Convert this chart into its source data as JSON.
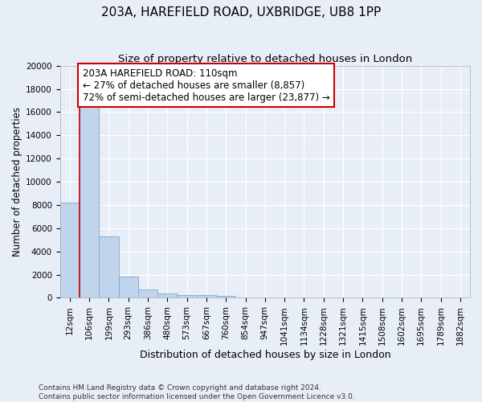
{
  "title": "203A, HAREFIELD ROAD, UXBRIDGE, UB8 1PP",
  "subtitle": "Size of property relative to detached houses in London",
  "xlabel": "Distribution of detached houses by size in London",
  "ylabel": "Number of detached properties",
  "categories": [
    "12sqm",
    "106sqm",
    "199sqm",
    "293sqm",
    "386sqm",
    "480sqm",
    "573sqm",
    "667sqm",
    "760sqm",
    "854sqm",
    "947sqm",
    "1041sqm",
    "1134sqm",
    "1228sqm",
    "1321sqm",
    "1415sqm",
    "1508sqm",
    "1602sqm",
    "1695sqm",
    "1789sqm",
    "1882sqm"
  ],
  "values": [
    8200,
    16600,
    5300,
    1850,
    720,
    370,
    270,
    220,
    195,
    0,
    0,
    0,
    0,
    0,
    0,
    0,
    0,
    0,
    0,
    0,
    0
  ],
  "bar_color": "#c0d4ec",
  "bar_edge_color": "#7aaad0",
  "vline_x": 0.5,
  "vline_color": "#cc0000",
  "annotation_text": "203A HAREFIELD ROAD: 110sqm\n← 27% of detached houses are smaller (8,857)\n72% of semi-detached houses are larger (23,877) →",
  "annotation_box_facecolor": "#ffffff",
  "annotation_box_edgecolor": "#cc0000",
  "ylim": [
    0,
    20000
  ],
  "yticks": [
    0,
    2000,
    4000,
    6000,
    8000,
    10000,
    12000,
    14000,
    16000,
    18000,
    20000
  ],
  "footer_line1": "Contains HM Land Registry data © Crown copyright and database right 2024.",
  "footer_line2": "Contains public sector information licensed under the Open Government Licence v3.0.",
  "bg_color": "#e8eef8",
  "grid_color": "#ffffff",
  "title_fontsize": 11,
  "subtitle_fontsize": 9.5,
  "ylabel_fontsize": 8.5,
  "xlabel_fontsize": 9,
  "tick_fontsize": 7.5,
  "footer_fontsize": 6.5,
  "annot_fontsize": 8.5
}
